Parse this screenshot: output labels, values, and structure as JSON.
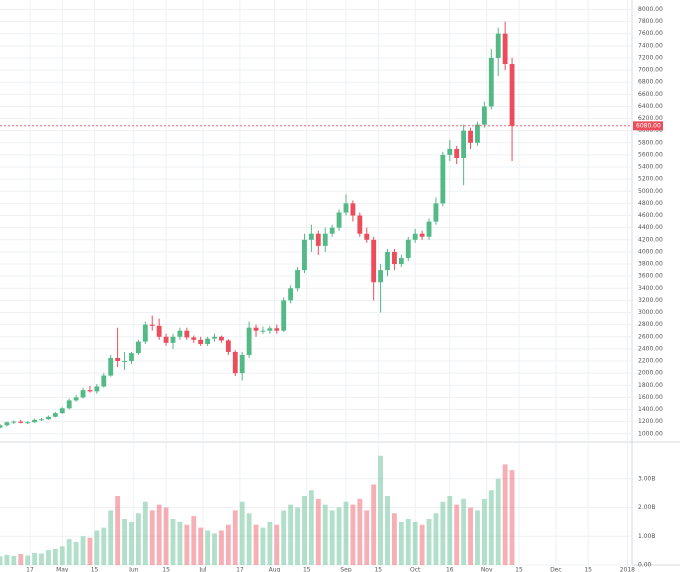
{
  "chart_data": {
    "type": "candlestick",
    "x": [
      "2017-04-04",
      "2017-04-07",
      "2017-04-10",
      "2017-04-13",
      "2017-04-16",
      "2017-04-19",
      "2017-04-22",
      "2017-04-25",
      "2017-04-28",
      "2017-05-01",
      "2017-05-04",
      "2017-05-07",
      "2017-05-10",
      "2017-05-13",
      "2017-05-16",
      "2017-05-19",
      "2017-05-22",
      "2017-05-25",
      "2017-05-28",
      "2017-05-31",
      "2017-06-03",
      "2017-06-06",
      "2017-06-09",
      "2017-06-12",
      "2017-06-15",
      "2017-06-18",
      "2017-06-21",
      "2017-06-24",
      "2017-06-27",
      "2017-06-30",
      "2017-07-03",
      "2017-07-06",
      "2017-07-09",
      "2017-07-12",
      "2017-07-15",
      "2017-07-18",
      "2017-07-21",
      "2017-07-24",
      "2017-07-27",
      "2017-07-30",
      "2017-08-02",
      "2017-08-05",
      "2017-08-08",
      "2017-08-11",
      "2017-08-14",
      "2017-08-17",
      "2017-08-20",
      "2017-08-23",
      "2017-08-26",
      "2017-08-29",
      "2017-09-01",
      "2017-09-04",
      "2017-09-07",
      "2017-09-10",
      "2017-09-13",
      "2017-09-16",
      "2017-09-19",
      "2017-09-22",
      "2017-09-25",
      "2017-09-28",
      "2017-10-01",
      "2017-10-04",
      "2017-10-07",
      "2017-10-10",
      "2017-10-13",
      "2017-10-16",
      "2017-10-19",
      "2017-10-22",
      "2017-10-25",
      "2017-10-28",
      "2017-10-31",
      "2017-11-03",
      "2017-11-06",
      "2017-11-09",
      "2017-11-12"
    ],
    "open": [
      1100,
      1140,
      1190,
      1200,
      1180,
      1190,
      1230,
      1240,
      1280,
      1340,
      1420,
      1550,
      1600,
      1720,
      1700,
      1780,
      1960,
      2250,
      2200,
      2200,
      2330,
      2520,
      2800,
      2780,
      2600,
      2500,
      2600,
      2700,
      2590,
      2550,
      2480,
      2570,
      2600,
      2540,
      2350,
      2000,
      2300,
      2750,
      2700,
      2700,
      2740,
      2700,
      3200,
      3400,
      3700,
      4200,
      4300,
      4100,
      4300,
      4400,
      4650,
      4800,
      4600,
      4300,
      4200,
      3500,
      3700,
      4000,
      3800,
      3900,
      4200,
      4300,
      4250,
      4500,
      4800,
      5600,
      5700,
      5550,
      6000,
      5800,
      6100,
      6400,
      7200,
      7600,
      7100
    ],
    "high": [
      1160,
      1200,
      1220,
      1230,
      1210,
      1250,
      1260,
      1300,
      1360,
      1440,
      1580,
      1640,
      1760,
      1790,
      1820,
      2000,
      2300,
      2750,
      2350,
      2350,
      2550,
      2850,
      2950,
      2900,
      2650,
      2650,
      2750,
      2750,
      2620,
      2600,
      2600,
      2650,
      2620,
      2560,
      2380,
      2350,
      2850,
      2800,
      2770,
      2780,
      2800,
      3250,
      3450,
      3750,
      4300,
      4450,
      4350,
      4400,
      4450,
      4700,
      4950,
      4850,
      4650,
      4400,
      4250,
      3800,
      4050,
      4050,
      3950,
      4250,
      4380,
      4350,
      4550,
      4900,
      5650,
      5850,
      5750,
      6100,
      6050,
      6150,
      6480,
      7350,
      7700,
      7800,
      7200
    ],
    "low": [
      1090,
      1120,
      1160,
      1170,
      1160,
      1180,
      1210,
      1230,
      1270,
      1330,
      1400,
      1530,
      1580,
      1680,
      1660,
      1760,
      1940,
      2100,
      2050,
      2150,
      2300,
      2480,
      2700,
      2550,
      2450,
      2400,
      2550,
      2550,
      2500,
      2450,
      2450,
      2520,
      2500,
      2300,
      1950,
      1880,
      2250,
      2600,
      2650,
      2650,
      2650,
      2680,
      3150,
      3350,
      3650,
      4000,
      3950,
      4000,
      4250,
      4350,
      4600,
      4500,
      4250,
      4150,
      3200,
      3000,
      3600,
      3700,
      3750,
      3850,
      4150,
      4200,
      4200,
      4450,
      4750,
      5500,
      5450,
      5100,
      5700,
      5750,
      6050,
      6350,
      6900,
      7000,
      5500
    ],
    "close": [
      1140,
      1190,
      1200,
      1180,
      1190,
      1230,
      1240,
      1280,
      1340,
      1420,
      1550,
      1600,
      1720,
      1700,
      1780,
      1960,
      2250,
      2200,
      2200,
      2330,
      2520,
      2800,
      2780,
      2600,
      2500,
      2600,
      2700,
      2590,
      2550,
      2480,
      2570,
      2600,
      2540,
      2350,
      2000,
      2300,
      2750,
      2700,
      2700,
      2740,
      2700,
      3200,
      3400,
      3700,
      4200,
      4300,
      4100,
      4300,
      4400,
      4650,
      4800,
      4600,
      4300,
      4200,
      3500,
      3700,
      4000,
      3800,
      3900,
      4200,
      4300,
      4250,
      4500,
      4800,
      5600,
      5700,
      5550,
      6000,
      5800,
      6100,
      6400,
      7200,
      7600,
      7100,
      6080
    ],
    "volume": [
      300,
      350,
      320,
      380,
      330,
      420,
      400,
      520,
      560,
      650,
      900,
      800,
      1000,
      950,
      1200,
      1300,
      1900,
      2400,
      1600,
      1500,
      1800,
      2200,
      1900,
      2100,
      2000,
      1600,
      1500,
      1400,
      1700,
      1300,
      1200,
      1100,
      1200,
      1400,
      1900,
      2200,
      1800,
      1400,
      1300,
      1500,
      1400,
      1900,
      2100,
      2000,
      2400,
      2600,
      2300,
      2100,
      1900,
      2000,
      2200,
      2100,
      2300,
      1900,
      2800,
      3800,
      2400,
      1800,
      1500,
      1600,
      1500,
      1400,
      1600,
      1800,
      2200,
      2400,
      2100,
      2300,
      2000,
      1900,
      2300,
      2600,
      3000,
      3500,
      3300
    ],
    "up_color": "#53b987",
    "down_color": "#eb4d5c",
    "xlim": [
      "2017-04-04",
      "2018-01-03"
    ],
    "xticks": [
      {
        "value": "2017-04-17",
        "label": "17"
      },
      {
        "value": "2017-05-01",
        "label": "May"
      },
      {
        "value": "2017-05-15",
        "label": "15"
      },
      {
        "value": "2017-06-01",
        "label": "Jun"
      },
      {
        "value": "2017-06-15",
        "label": "15"
      },
      {
        "value": "2017-07-01",
        "label": "Jul"
      },
      {
        "value": "2017-07-17",
        "label": "17"
      },
      {
        "value": "2017-08-01",
        "label": "Aug"
      },
      {
        "value": "2017-08-15",
        "label": "15"
      },
      {
        "value": "2017-09-01",
        "label": "Sep"
      },
      {
        "value": "2017-09-15",
        "label": "15"
      },
      {
        "value": "2017-10-01",
        "label": "Oct"
      },
      {
        "value": "2017-10-16",
        "label": "16"
      },
      {
        "value": "2017-11-01",
        "label": "Nov"
      },
      {
        "value": "2017-11-15",
        "label": "15"
      },
      {
        "value": "2017-12-01",
        "label": "Dec"
      },
      {
        "value": "2017-12-15",
        "label": "15"
      },
      {
        "value": "2018-01-01",
        "label": "2018"
      }
    ],
    "ylim": [
      930,
      8090
    ],
    "yticks": [
      {
        "value": 1000,
        "label": "1000.00"
      },
      {
        "value": 1200,
        "label": "1200.00"
      },
      {
        "value": 1400,
        "label": "1400.00"
      },
      {
        "value": 1600,
        "label": "1600.00"
      },
      {
        "value": 1800,
        "label": "1800.00"
      },
      {
        "value": 2000,
        "label": "2000.00"
      },
      {
        "value": 2200,
        "label": "2200.00"
      },
      {
        "value": 2400,
        "label": "2400.00"
      },
      {
        "value": 2600,
        "label": "2600.00"
      },
      {
        "value": 2800,
        "label": "2800.00"
      },
      {
        "value": 3000,
        "label": "3000.00"
      },
      {
        "value": 3200,
        "label": "3200.00"
      },
      {
        "value": 3400,
        "label": "3400.00"
      },
      {
        "value": 3600,
        "label": "3600.00"
      },
      {
        "value": 3800,
        "label": "3800.00"
      },
      {
        "value": 4000,
        "label": "4000.00"
      },
      {
        "value": 4200,
        "label": "4200.00"
      },
      {
        "value": 4400,
        "label": "4400.00"
      },
      {
        "value": 4600,
        "label": "4600.00"
      },
      {
        "value": 4800,
        "label": "4800.00"
      },
      {
        "value": 5000,
        "label": "5000.00"
      },
      {
        "value": 5200,
        "label": "5200.00"
      },
      {
        "value": 5400,
        "label": "5400.00"
      },
      {
        "value": 5600,
        "label": "5600.00"
      },
      {
        "value": 5800,
        "label": "5800.00"
      },
      {
        "value": 6000,
        "label": "6000.00"
      },
      {
        "value": 6200,
        "label": "6200.00"
      },
      {
        "value": 6400,
        "label": "6400.00"
      },
      {
        "value": 6600,
        "label": "6600.00"
      },
      {
        "value": 6800,
        "label": "6800.00"
      },
      {
        "value": 7000,
        "label": "7000.00"
      },
      {
        "value": 7200,
        "label": "7200.00"
      },
      {
        "value": 7400,
        "label": "7400.00"
      },
      {
        "value": 7600,
        "label": "7600.00"
      },
      {
        "value": 7800,
        "label": "7800.00"
      },
      {
        "value": 8000,
        "label": "8000.00"
      }
    ],
    "last_price": {
      "value": 6080,
      "label": "6080.00"
    },
    "y2lim": [
      0,
      4000
    ],
    "y2ticks": [
      {
        "value": 0,
        "label": "0.00"
      },
      {
        "value": 1000,
        "label": "1.00B"
      },
      {
        "value": 2000,
        "label": "2.00B"
      },
      {
        "value": 3000,
        "label": "3.00B"
      }
    ],
    "grid": true
  }
}
